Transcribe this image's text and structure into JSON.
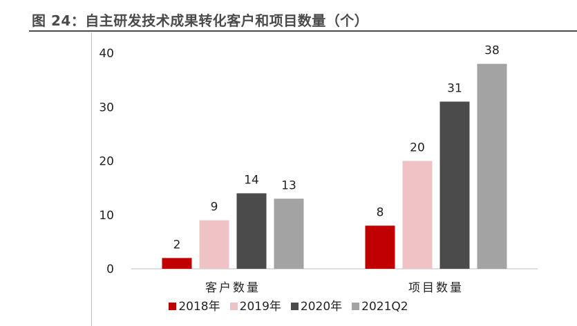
{
  "title": "图 24：自主研发技术成果转化客户和项目数量（个）",
  "chart_data": {
    "type": "bar",
    "categories": [
      "客户数量",
      "项目数量"
    ],
    "series": [
      {
        "name": "2018年",
        "values": [
          2,
          8
        ],
        "color": "#c00000"
      },
      {
        "name": "2019年",
        "values": [
          9,
          20
        ],
        "color": "#efc3c5"
      },
      {
        "name": "2020年",
        "values": [
          14,
          31
        ],
        "color": "#4b4b4b"
      },
      {
        "name": "2021Q2",
        "values": [
          13,
          38
        ],
        "color": "#a3a3a3"
      }
    ],
    "yticks": [
      0,
      10,
      20,
      30,
      40
    ],
    "ylim": [
      0,
      40
    ],
    "legend": "bottom",
    "grid": false
  }
}
